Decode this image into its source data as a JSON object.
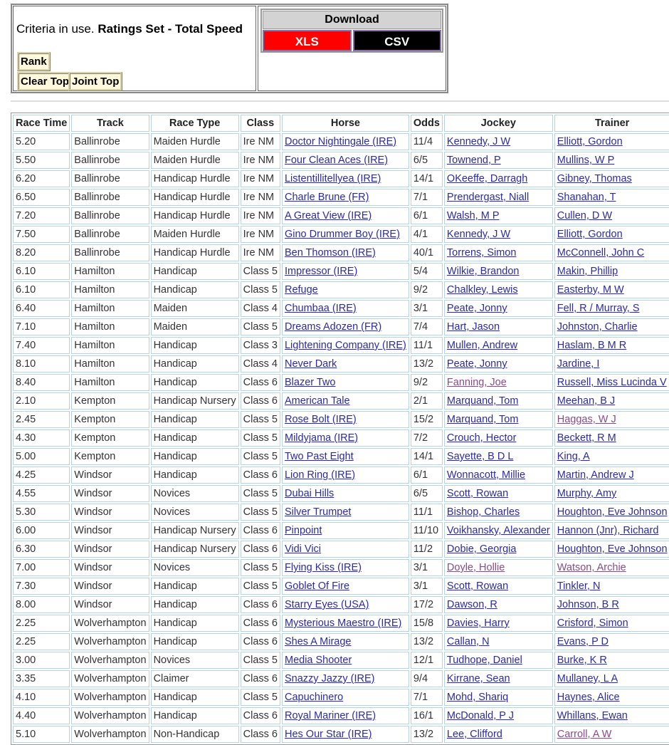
{
  "criteria": {
    "prefix": "Criteria in use.",
    "value": "Ratings Set - Total Speed"
  },
  "buttons": {
    "rank": "Rank",
    "clear_top": "Clear Top",
    "joint_top": "Joint Top"
  },
  "download": {
    "title": "Download",
    "xls": "XLS",
    "csv": "CSV",
    "xls_color": "#ff0000",
    "csv_color": "#000000"
  },
  "table": {
    "headers": [
      "Race Time",
      "Track",
      "Race Type",
      "Class",
      "Horse",
      "Odds",
      "Jockey",
      "Trainer"
    ],
    "rows": [
      [
        "5.20",
        "Ballinrobe",
        "Maiden Hurdle",
        "Ire NM",
        "Doctor Nightingale (IRE)",
        "11/4",
        "Kennedy, J W",
        "Elliott, Gordon"
      ],
      [
        "5.50",
        "Ballinrobe",
        "Maiden Hurdle",
        "Ire NM",
        "Four Clean Aces (IRE)",
        "6/5",
        "Townend, P",
        "Mullins, W P"
      ],
      [
        "6.20",
        "Ballinrobe",
        "Handicap Hurdle",
        "Ire NM",
        "Listentillitellyea (IRE)",
        "14/1",
        "OKeeffe, Darragh",
        "Gibney, Thomas"
      ],
      [
        "6.50",
        "Ballinrobe",
        "Handicap Hurdle",
        "Ire NM",
        "Charle Brune (FR)",
        "7/1",
        "Prendergast, Niall",
        "Shanahan, T"
      ],
      [
        "7.20",
        "Ballinrobe",
        "Handicap Hurdle",
        "Ire NM",
        "A Great View (IRE)",
        "6/1",
        "Walsh, M P",
        "Cullen, D W"
      ],
      [
        "7.50",
        "Ballinrobe",
        "Maiden Hurdle",
        "Ire NM",
        "Gino Drummer Boy (IRE)",
        "4/1",
        "Kennedy, J W",
        "Elliott, Gordon"
      ],
      [
        "8.20",
        "Ballinrobe",
        "Handicap Hurdle",
        "Ire NM",
        "Ben Thomson (IRE)",
        "40/1",
        "Torrens, Simon",
        "McConnell, John C"
      ],
      [
        "6.10",
        "Hamilton",
        "Handicap",
        "Class 5",
        "Impressor (IRE)",
        "5/4",
        "Wilkie, Brandon",
        "Makin, Phillip"
      ],
      [
        "6.10",
        "Hamilton",
        "Handicap",
        "Class 5",
        "Refuge",
        "9/2",
        "Chalkley, Lewis",
        "Easterby, M W"
      ],
      [
        "6.40",
        "Hamilton",
        "Maiden",
        "Class 4",
        "Chumbaa (IRE)",
        "3/1",
        "Peate, Jonny",
        "Fell, R / Murray, S"
      ],
      [
        "7.10",
        "Hamilton",
        "Maiden",
        "Class 5",
        "Dreams Adozen (FR)",
        "7/4",
        "Hart, Jason",
        "Johnston, Charlie"
      ],
      [
        "7.40",
        "Hamilton",
        "Handicap",
        "Class 3",
        "Lightening Company (IRE)",
        "11/1",
        "Mullen, Andrew",
        "Haslam, B M R"
      ],
      [
        "8.10",
        "Hamilton",
        "Handicap",
        "Class 4",
        "Never Dark",
        "13/2",
        "Peate, Jonny",
        "Jardine, I"
      ],
      [
        "8.40",
        "Hamilton",
        "Handicap",
        "Class 6",
        "Blazer Two",
        "9/2",
        "Fanning, Joe",
        "Russell, Miss Lucinda V"
      ],
      [
        "2.10",
        "Kempton",
        "Handicap Nursery",
        "Class 6",
        "American Tale",
        "2/1",
        "Marquand, Tom",
        "Meehan, B J"
      ],
      [
        "2.45",
        "Kempton",
        "Handicap",
        "Class 5",
        "Rose Bolt (IRE)",
        "15/2",
        "Marquand, Tom",
        "Haggas, W J"
      ],
      [
        "4.30",
        "Kempton",
        "Handicap",
        "Class 5",
        "Mildyjama (IRE)",
        "7/2",
        "Crouch, Hector",
        "Beckett, R M"
      ],
      [
        "5.00",
        "Kempton",
        "Handicap",
        "Class 5",
        "Two Past Eight",
        "14/1",
        "Sayette, B D L",
        "King, A"
      ],
      [
        "4.25",
        "Windsor",
        "Handicap",
        "Class 6",
        "Lion Ring (IRE)",
        "6/1",
        "Wonnacott, Millie",
        "Martin, Andrew J"
      ],
      [
        "4.55",
        "Windsor",
        "Novices",
        "Class 5",
        "Dubai Hills",
        "6/5",
        "Scott, Rowan",
        "Murphy, Amy"
      ],
      [
        "5.30",
        "Windsor",
        "Novices",
        "Class 5",
        "Silver Trumpet",
        "11/1",
        "Bishop, Charles",
        "Houghton, Eve Johnson"
      ],
      [
        "6.00",
        "Windsor",
        "Handicap Nursery",
        "Class 6",
        "Pinpoint",
        "11/10",
        "Voikhansky, Alexander",
        "Hannon (Jnr), Richard"
      ],
      [
        "6.30",
        "Windsor",
        "Handicap Nursery",
        "Class 6",
        "Vidi Vici",
        "11/2",
        "Dobie, Georgia",
        "Houghton, Eve Johnson"
      ],
      [
        "7.00",
        "Windsor",
        "Novices",
        "Class 5",
        "Flying Kiss (IRE)",
        "3/1",
        "Doyle, Hollie",
        "Watson, Archie"
      ],
      [
        "7.30",
        "Windsor",
        "Handicap",
        "Class 5",
        "Goblet Of Fire",
        "3/1",
        "Scott, Rowan",
        "Tinkler, N"
      ],
      [
        "8.00",
        "Windsor",
        "Handicap",
        "Class 6",
        "Starry Eyes (USA)",
        "17/2",
        "Dawson, R",
        "Johnson, B R"
      ],
      [
        "2.25",
        "Wolverhampton",
        "Handicap",
        "Class 6",
        "Mysterious Maestro (IRE)",
        "15/8",
        "Davies, Harry",
        "Crisford, Simon"
      ],
      [
        "2.25",
        "Wolverhampton",
        "Handicap",
        "Class 6",
        "Shes A Mirage",
        "13/2",
        "Callan, N",
        "Evans, P D"
      ],
      [
        "3.00",
        "Wolverhampton",
        "Novices",
        "Class 5",
        "Media Shooter",
        "12/1",
        "Tudhope, Daniel",
        "Burke, K R"
      ],
      [
        "3.35",
        "Wolverhampton",
        "Claimer",
        "Class 6",
        "Snazzy Jazzy (IRE)",
        "9/4",
        "Kirrane, Sean",
        "Mullaney, L A"
      ],
      [
        "4.10",
        "Wolverhampton",
        "Handicap",
        "Class 5",
        "Capuchinero",
        "7/1",
        "Mohd, Shariq",
        "Haynes, Alice"
      ],
      [
        "4.40",
        "Wolverhampton",
        "Handicap",
        "Class 6",
        "Royal Mariner (IRE)",
        "16/1",
        "McDonald, P J",
        "Whillans, Ewan"
      ],
      [
        "5.10",
        "Wolverhampton",
        "Non-Handicap",
        "Class 6",
        "Hes Our Star (IRE)",
        "13/2",
        "Lee, Clifford",
        "Carroll, A W"
      ]
    ],
    "visited": {
      "jockey": [
        13,
        23
      ],
      "trainer": [
        15,
        23,
        32
      ]
    }
  }
}
